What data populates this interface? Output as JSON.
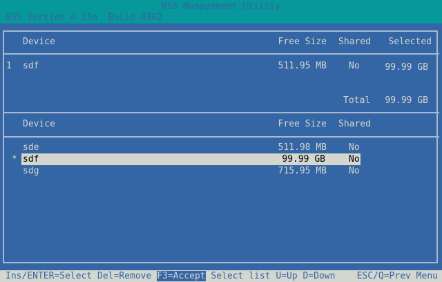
{
  "header": {
    "title": "NSS Management Utility",
    "version": "NSS Version 4.15a  Build 4362"
  },
  "top_list": {
    "columns": [
      "Device",
      "Free Size",
      "Shared",
      "Selected"
    ],
    "rows": [
      {
        "index": "1",
        "device": "sdf",
        "free_size": "511.95 MB",
        "shared": "No",
        "selected": "99.99 GB"
      }
    ],
    "total_label": "Total",
    "total_value": "99.99 GB"
  },
  "bottom_list": {
    "columns": [
      "Device",
      "Free Size",
      "Shared"
    ],
    "rows": [
      {
        "marker": "",
        "device": "sde",
        "free_size": "511.98 MB",
        "shared": "No"
      },
      {
        "marker": "*",
        "device": "sdf",
        "free_size": "99.99 GB",
        "shared": "No",
        "highlighted": true
      },
      {
        "marker": "",
        "device": "sdg",
        "free_size": "715.95 MB",
        "shared": "No"
      }
    ]
  },
  "footer": {
    "left": "Ins/ENTER=Select Del=Remove ",
    "accept": "F3=Accept",
    "mid": " Select list U=Up D=Down",
    "right": "ESC/Q=Prev Menu"
  },
  "colors": {
    "background": "#3465a4",
    "header": "#06989a",
    "text": "#d3d7cf",
    "highlight": "#d3d7cf"
  }
}
